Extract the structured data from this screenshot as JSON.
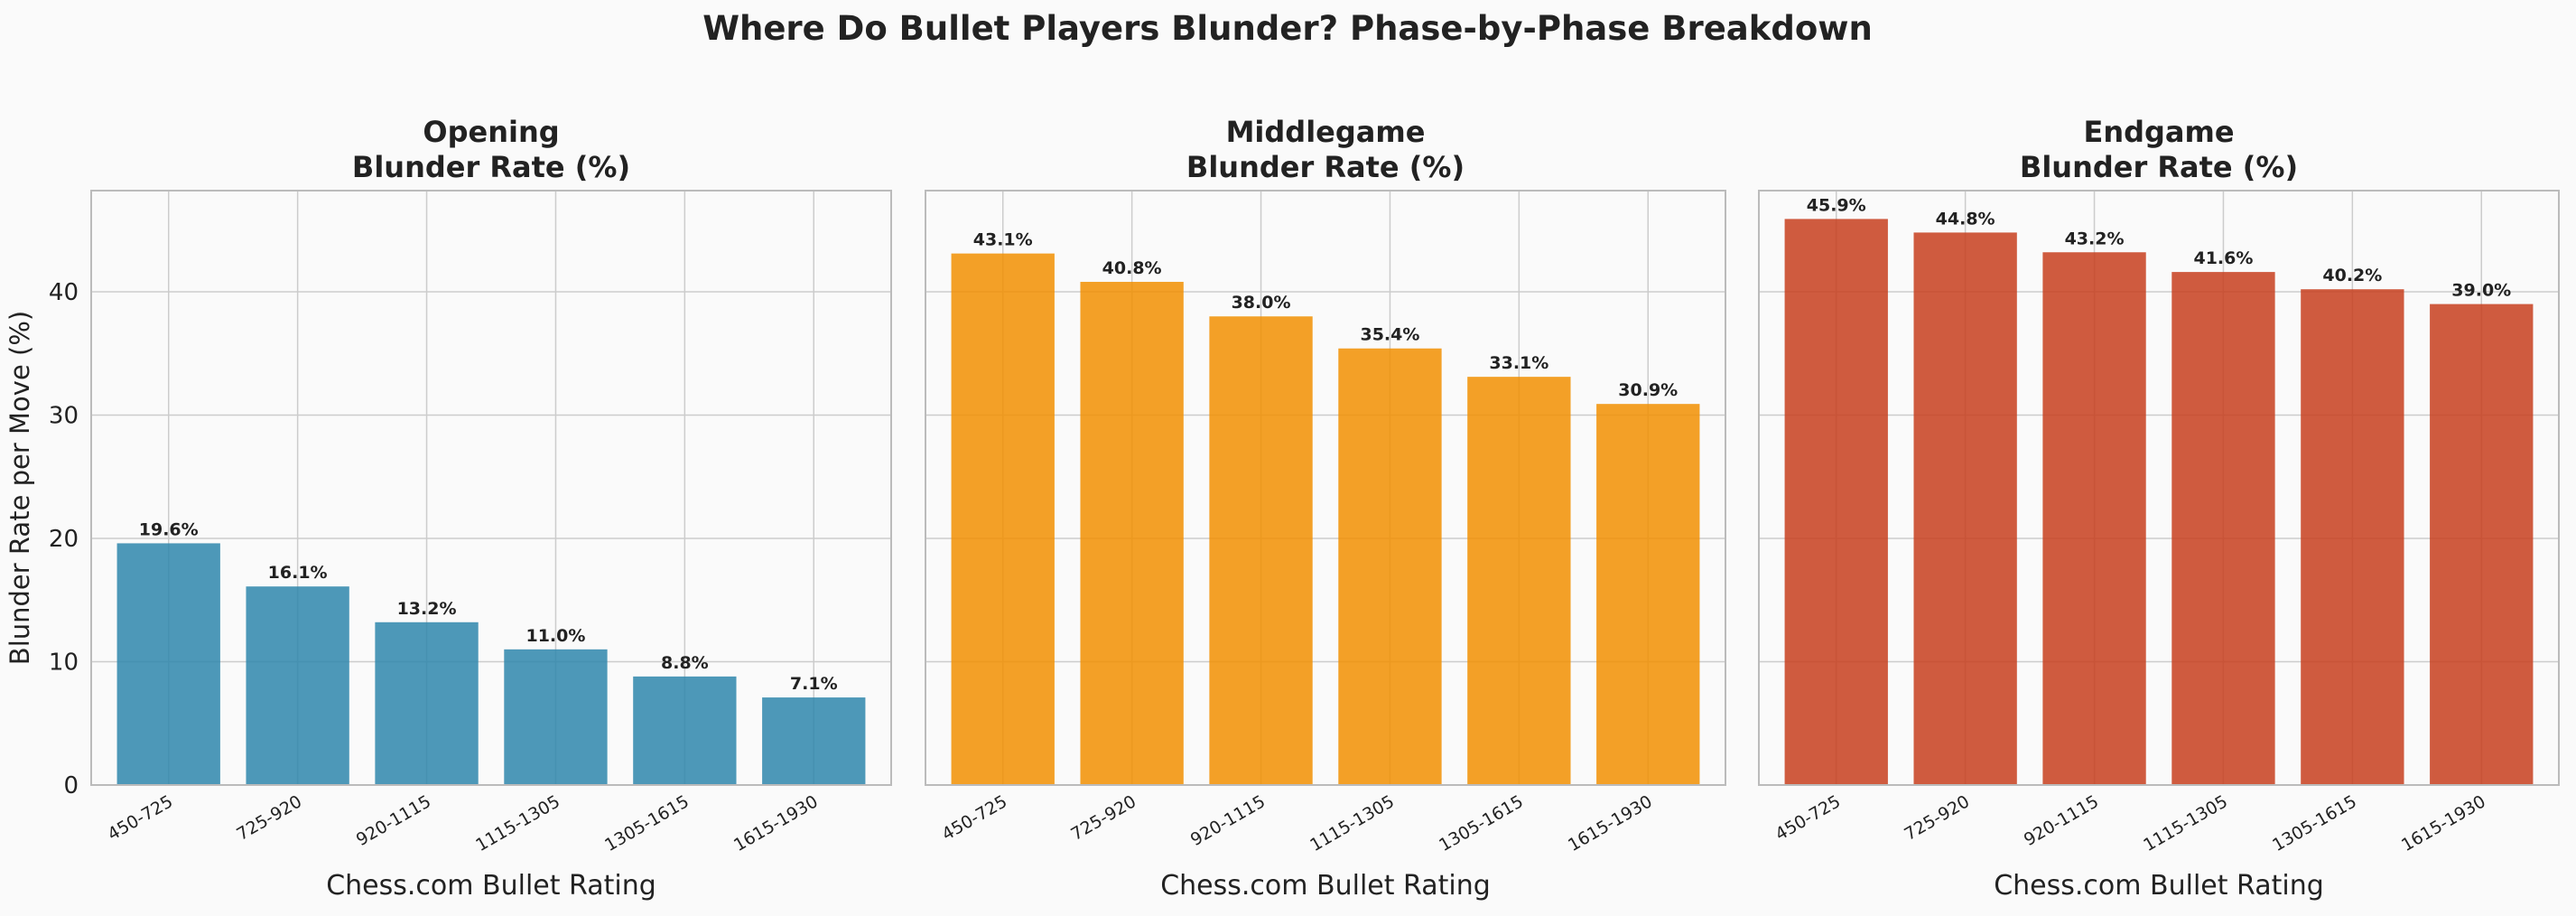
{
  "suptitle": "Where Do Bullet Players Blunder? Phase-by-Phase Breakdown",
  "colors": {
    "background": "#fafafa",
    "grid": "#cccccc",
    "spine": "#bbbbbb",
    "text": "#222222",
    "opening": "#2e86ab",
    "middlegame": "#f18f01",
    "endgame": "#c73e1d"
  },
  "chart_data": [
    {
      "type": "bar",
      "title": [
        "Opening",
        "Blunder Rate (%)"
      ],
      "xlabel": "Chess.com Bullet Rating",
      "ylabel": "Blunder Rate per Move (%)",
      "categories": [
        "450-725",
        "725-920",
        "920-1115",
        "1115-1305",
        "1305-1615",
        "1615-1930"
      ],
      "values": [
        19.6,
        16.1,
        13.2,
        11.0,
        8.8,
        7.1
      ],
      "value_labels": [
        "19.6%",
        "16.1%",
        "13.2%",
        "11.0%",
        "8.8%",
        "7.1%"
      ],
      "ylim": [
        0,
        48.2
      ],
      "yticks": [
        0,
        10,
        20,
        30,
        40
      ],
      "grid": true,
      "color": "#2e86ab"
    },
    {
      "type": "bar",
      "title": [
        "Middlegame",
        "Blunder Rate (%)"
      ],
      "xlabel": "Chess.com Bullet Rating",
      "ylabel": "",
      "categories": [
        "450-725",
        "725-920",
        "920-1115",
        "1115-1305",
        "1305-1615",
        "1615-1930"
      ],
      "values": [
        43.1,
        40.8,
        38.0,
        35.4,
        33.1,
        30.9
      ],
      "value_labels": [
        "43.1%",
        "40.8%",
        "38.0%",
        "35.4%",
        "33.1%",
        "30.9%"
      ],
      "ylim": [
        0,
        48.2
      ],
      "yticks": [
        0,
        10,
        20,
        30,
        40
      ],
      "grid": true,
      "color": "#f18f01"
    },
    {
      "type": "bar",
      "title": [
        "Endgame",
        "Blunder Rate (%)"
      ],
      "xlabel": "Chess.com Bullet Rating",
      "ylabel": "",
      "categories": [
        "450-725",
        "725-920",
        "920-1115",
        "1115-1305",
        "1305-1615",
        "1615-1930"
      ],
      "values": [
        45.9,
        44.8,
        43.2,
        41.6,
        40.2,
        39.0
      ],
      "value_labels": [
        "45.9%",
        "44.8%",
        "43.2%",
        "41.6%",
        "40.2%",
        "39.0%"
      ],
      "ylim": [
        0,
        48.2
      ],
      "yticks": [
        0,
        10,
        20,
        30,
        40
      ],
      "grid": true,
      "color": "#c73e1d"
    }
  ]
}
